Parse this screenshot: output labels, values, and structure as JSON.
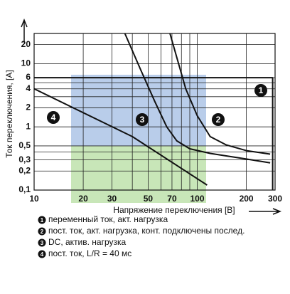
{
  "chart_data": {
    "type": "line",
    "x_label": "Напряжение переключения [B]",
    "y_label": "Ток переключения, [A]",
    "log_x": true,
    "log_y": true,
    "grid": true,
    "xlim": [
      10,
      300
    ],
    "ylim": [
      0.1,
      30
    ],
    "xticks": [
      10,
      20,
      30,
      50,
      70,
      100,
      200,
      300
    ],
    "xminor": [
      40,
      60,
      80,
      90
    ],
    "yticks": [
      {
        "value": 0.1,
        "label": "0,1"
      },
      {
        "value": 0.2,
        "label": "0,2"
      },
      {
        "value": 0.3,
        "label": "0,3"
      },
      {
        "value": 0.5,
        "label": "0,5"
      },
      1,
      2,
      4,
      6,
      10,
      20
    ],
    "yminor": [
      0.4,
      3,
      5
    ],
    "series": [
      {
        "label": "1",
        "name": "переменный ток, акт. нагрузка",
        "color": "#111111",
        "x": [
          10,
          290,
          290
        ],
        "values": [
          6,
          6,
          0.1
        ]
      },
      {
        "label": "2",
        "name": "пост. ток, акт. нагрузка, конт. подключены послед.",
        "color": "#111111",
        "x": [
          68,
          85,
          100,
          120,
          150,
          200,
          280
        ],
        "values": [
          30,
          4,
          1.5,
          0.7,
          0.52,
          0.42,
          0.37
        ]
      },
      {
        "label": "3",
        "name": "DC, актив. нагрузка",
        "color": "#111111",
        "x": [
          36,
          45,
          55,
          65,
          75,
          90,
          120,
          200,
          280
        ],
        "values": [
          30,
          8,
          2.5,
          1,
          0.6,
          0.45,
          0.38,
          0.31,
          0.27
        ]
      },
      {
        "label": "4",
        "name": "пост. ток, L/R = 40 мс",
        "color": "#111111",
        "x": [
          10,
          40,
          115
        ],
        "values": [
          4,
          0.7,
          0.12
        ]
      }
    ]
  }
}
